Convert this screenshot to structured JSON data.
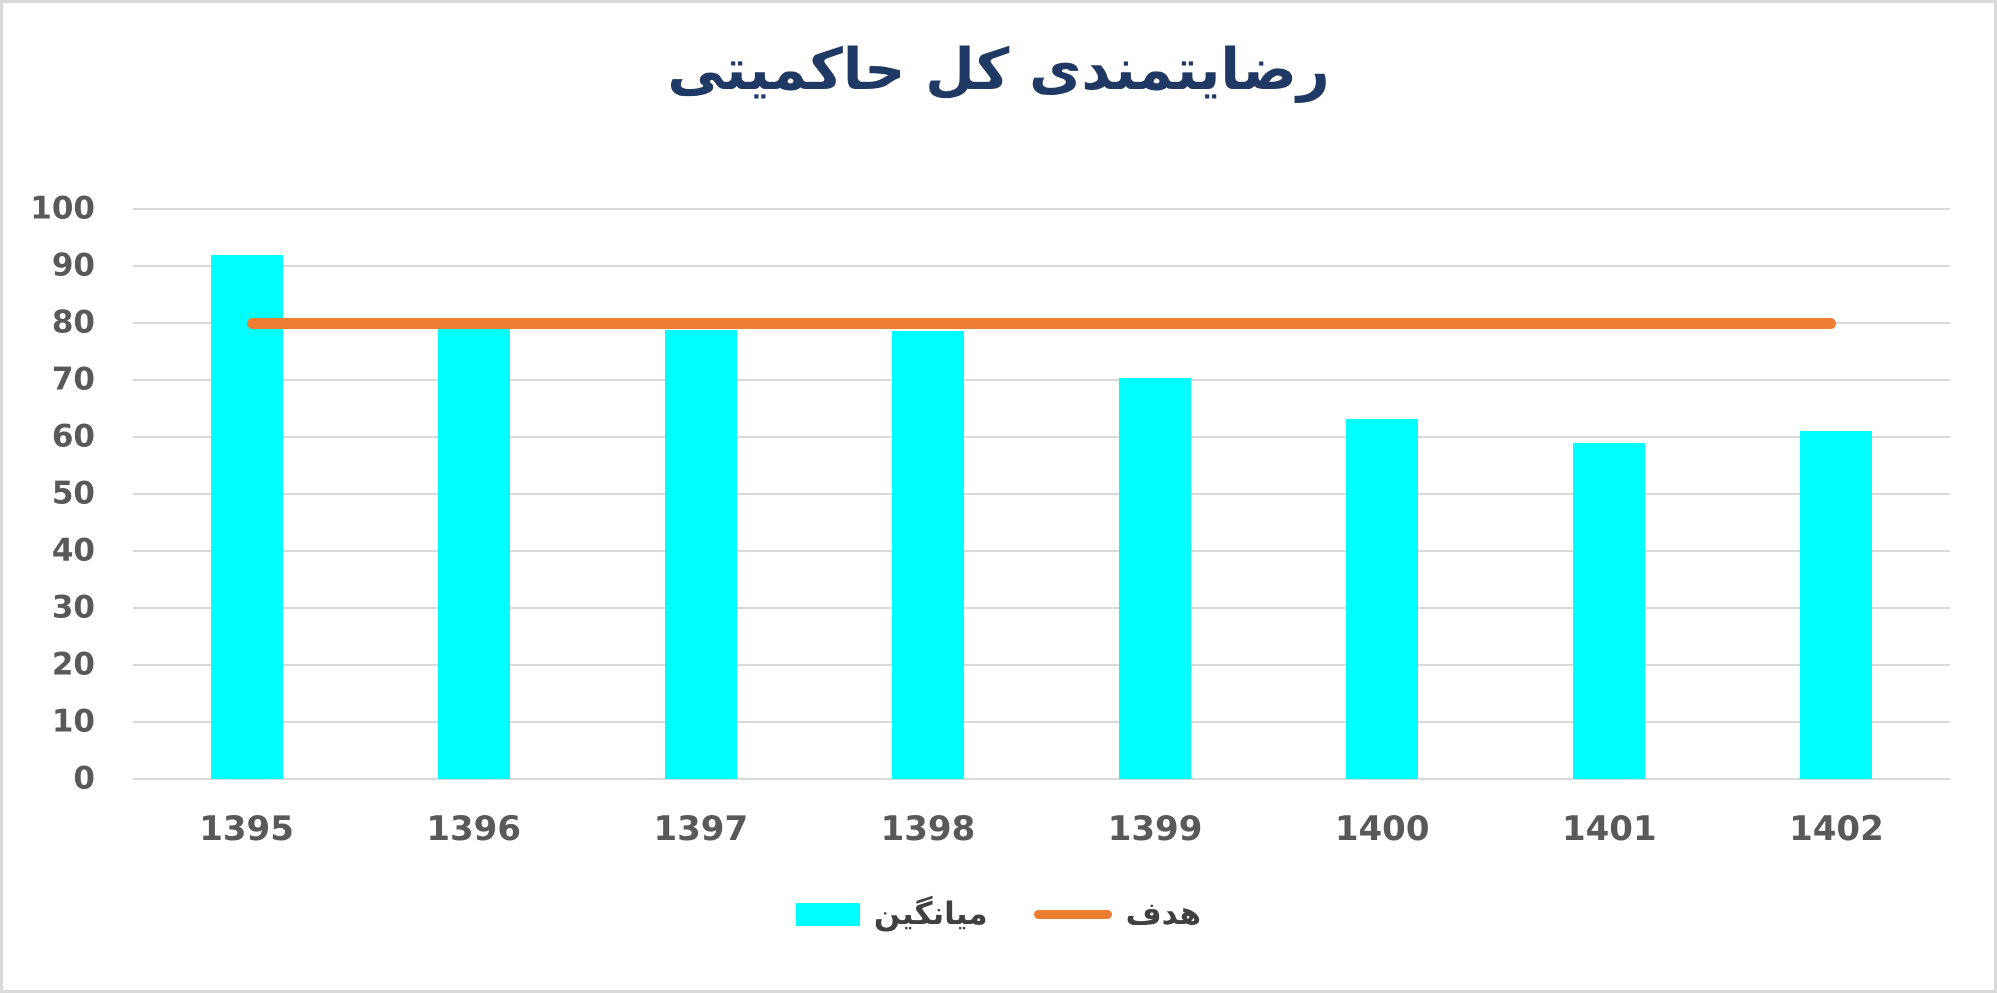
{
  "chart_data": {
    "type": "bar",
    "title": "رضایتمندی کل حاکمیتی",
    "categories": [
      "1395",
      "1396",
      "1397",
      "1398",
      "1399",
      "1400",
      "1401",
      "1402"
    ],
    "series": [
      {
        "name": "میانگین",
        "type": "bar",
        "color": "#00ffff",
        "values": [
          92,
          79.3,
          78.7,
          78.6,
          70.4,
          63.2,
          59,
          61
        ]
      },
      {
        "name": "هدف",
        "type": "line",
        "color": "#ed7d31",
        "values": [
          80,
          80,
          80,
          80,
          80,
          80,
          80,
          80
        ]
      }
    ],
    "xlabel": "",
    "ylabel": "",
    "ylim": [
      0,
      100
    ],
    "yticks": [
      0,
      10,
      20,
      30,
      40,
      50,
      60,
      70,
      80,
      90,
      100
    ],
    "grid": "horizontal",
    "legend_position": "bottom"
  },
  "colors": {
    "title": "#1f3864",
    "axis_text": "#595959",
    "gridline": "#d9d9d9",
    "legend_text": "#404040",
    "frame_border": "#d9d9d9",
    "background": "#ffffff"
  }
}
